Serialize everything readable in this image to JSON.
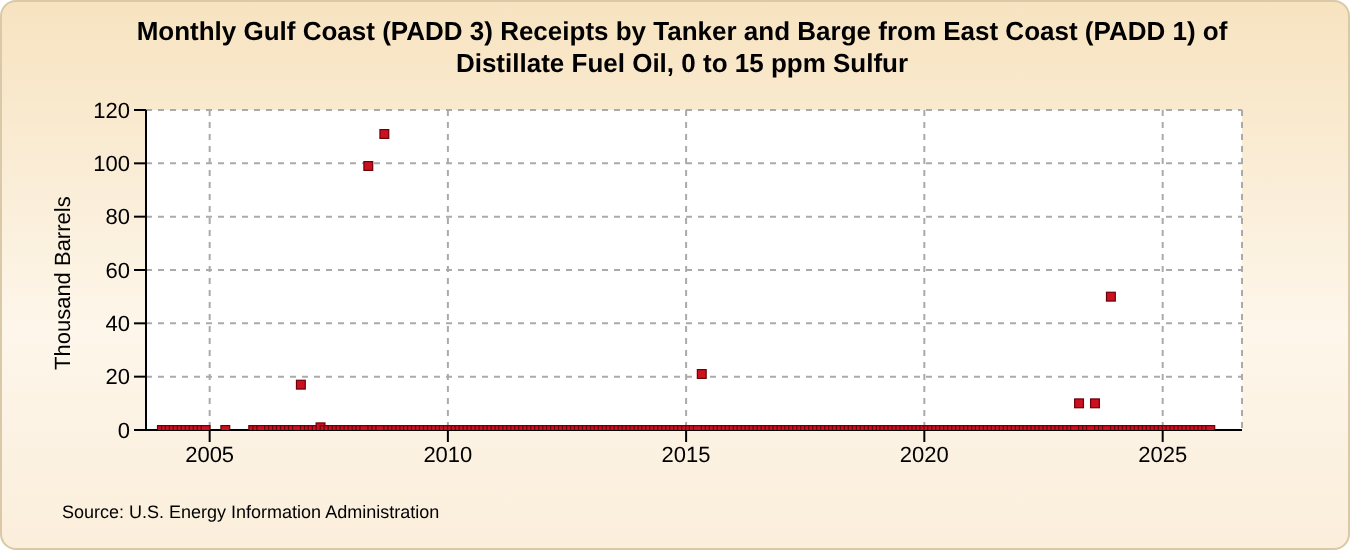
{
  "chart_data": {
    "type": "scatter",
    "title": "Monthly Gulf Coast (PADD 3) Receipts by Tanker and Barge from East Coast (PADD 1) of Distillate Fuel Oil, 0 to 15 ppm Sulfur",
    "ylabel": "Thousand Barrels",
    "annotations": [
      "Source: U.S. Energy Information Administration"
    ],
    "x": [
      "2004-01",
      "2004-02",
      "2004-03",
      "2004-04",
      "2004-05",
      "2004-06",
      "2004-07",
      "2004-08",
      "2004-09",
      "2004-10",
      "2004-11",
      "2004-12",
      "2005-05",
      "2005-12",
      "2006-01",
      "2006-02",
      "2006-04",
      "2006-05",
      "2006-06",
      "2006-07",
      "2006-08",
      "2006-09",
      "2006-10",
      "2006-11",
      "2006-12",
      "2007-01",
      "2007-02",
      "2007-03",
      "2007-04",
      "2007-05",
      "2007-06",
      "2007-07",
      "2007-08",
      "2007-09",
      "2007-10",
      "2007-11",
      "2007-12",
      "2008-01",
      "2008-02",
      "2008-03",
      "2008-04",
      "2008-05",
      "2008-06",
      "2008-07",
      "2008-08",
      "2008-09",
      "2008-10",
      "2008-11",
      "2008-12",
      "2009-01",
      "2009-02",
      "2009-03",
      "2009-04",
      "2009-05",
      "2009-06",
      "2009-07",
      "2009-08",
      "2009-09",
      "2009-10",
      "2009-11",
      "2009-12",
      "2010-01",
      "2010-02",
      "2010-03",
      "2010-04",
      "2010-05",
      "2010-06",
      "2010-07",
      "2010-08",
      "2010-09",
      "2010-10",
      "2010-11",
      "2010-12",
      "2011-01",
      "2011-02",
      "2011-03",
      "2011-04",
      "2011-05",
      "2011-06",
      "2011-07",
      "2011-08",
      "2011-09",
      "2011-10",
      "2011-11",
      "2011-12",
      "2012-01",
      "2012-02",
      "2012-03",
      "2012-04",
      "2012-05",
      "2012-06",
      "2012-07",
      "2012-08",
      "2012-09",
      "2012-10",
      "2012-11",
      "2012-12",
      "2013-01",
      "2013-02",
      "2013-03",
      "2013-04",
      "2013-05",
      "2013-06",
      "2013-07",
      "2013-08",
      "2013-09",
      "2013-10",
      "2013-11",
      "2013-12",
      "2014-01",
      "2014-02",
      "2014-03",
      "2014-04",
      "2014-05",
      "2014-06",
      "2014-07",
      "2014-08",
      "2014-09",
      "2014-10",
      "2014-11",
      "2014-12",
      "2015-01",
      "2015-02",
      "2015-03",
      "2015-04",
      "2015-05",
      "2015-06",
      "2015-07",
      "2015-08",
      "2015-09",
      "2015-10",
      "2015-11",
      "2015-12",
      "2016-01",
      "2016-02",
      "2016-03",
      "2016-04",
      "2016-05",
      "2016-06",
      "2016-07",
      "2016-08",
      "2016-09",
      "2016-10",
      "2016-11",
      "2016-12",
      "2017-01",
      "2017-02",
      "2017-03",
      "2017-04",
      "2017-05",
      "2017-06",
      "2017-07",
      "2017-08",
      "2017-09",
      "2017-10",
      "2017-11",
      "2017-12",
      "2018-01",
      "2018-02",
      "2018-03",
      "2018-04",
      "2018-05",
      "2018-06",
      "2018-07",
      "2018-08",
      "2018-09",
      "2018-10",
      "2018-11",
      "2018-12",
      "2019-01",
      "2019-02",
      "2019-03",
      "2019-04",
      "2019-05",
      "2019-06",
      "2019-07",
      "2019-08",
      "2019-09",
      "2019-10",
      "2019-11",
      "2019-12",
      "2020-01",
      "2020-02",
      "2020-03",
      "2020-04",
      "2020-05",
      "2020-06",
      "2020-07",
      "2020-08",
      "2020-09",
      "2020-10",
      "2020-11",
      "2020-12",
      "2021-01",
      "2021-02",
      "2021-03",
      "2021-04",
      "2021-05",
      "2021-06",
      "2021-07",
      "2021-08",
      "2021-09",
      "2021-10",
      "2021-11",
      "2021-12",
      "2022-01",
      "2022-02",
      "2022-03",
      "2022-04",
      "2022-05",
      "2022-06",
      "2022-07",
      "2022-08",
      "2022-09",
      "2022-10",
      "2022-11",
      "2022-12",
      "2023-01",
      "2023-02",
      "2023-03",
      "2023-04",
      "2023-05",
      "2023-06",
      "2023-07",
      "2023-08",
      "2023-09",
      "2023-10",
      "2023-11",
      "2023-12",
      "2024-01",
      "2024-02",
      "2024-03",
      "2024-04",
      "2024-05",
      "2024-06",
      "2024-07",
      "2024-08",
      "2024-09",
      "2024-10",
      "2024-11",
      "2024-12",
      "2025-01",
      "2025-02",
      "2025-03",
      "2025-04",
      "2025-05",
      "2025-06",
      "2025-07",
      "2025-08",
      "2025-09",
      "2025-10",
      "2025-11",
      "2025-12",
      "2026-01"
    ],
    "values": [
      0,
      0,
      0,
      0,
      0,
      0,
      0,
      0,
      0,
      0,
      0,
      0,
      0,
      0,
      0,
      0,
      0,
      0,
      0,
      0,
      0,
      0,
      0,
      0,
      17,
      0,
      0,
      0,
      0,
      1,
      0,
      0,
      0,
      0,
      0,
      0,
      0,
      0,
      0,
      0,
      0,
      99,
      0,
      0,
      0,
      111,
      0,
      0,
      0,
      0,
      0,
      0,
      0,
      0,
      0,
      0,
      0,
      0,
      0,
      0,
      0,
      0,
      0,
      0,
      0,
      0,
      0,
      0,
      0,
      0,
      0,
      0,
      0,
      0,
      0,
      0,
      0,
      0,
      0,
      0,
      0,
      0,
      0,
      0,
      0,
      0,
      0,
      0,
      0,
      0,
      0,
      0,
      0,
      0,
      0,
      0,
      0,
      0,
      0,
      0,
      0,
      0,
      0,
      0,
      0,
      0,
      0,
      0,
      0,
      0,
      0,
      0,
      0,
      0,
      0,
      0,
      0,
      0,
      0,
      0,
      0,
      0,
      0,
      0,
      0,
      21,
      0,
      0,
      0,
      0,
      0,
      0,
      0,
      0,
      0,
      0,
      0,
      0,
      0,
      0,
      0,
      0,
      0,
      0,
      0,
      0,
      0,
      0,
      0,
      0,
      0,
      0,
      0,
      0,
      0,
      0,
      0,
      0,
      0,
      0,
      0,
      0,
      0,
      0,
      0,
      0,
      0,
      0,
      0,
      0,
      0,
      0,
      0,
      0,
      0,
      0,
      0,
      0,
      0,
      0,
      0,
      0,
      0,
      0,
      0,
      0,
      0,
      0,
      0,
      0,
      0,
      0,
      0,
      0,
      0,
      0,
      0,
      0,
      0,
      0,
      0,
      0,
      0,
      0,
      0,
      0,
      0,
      0,
      0,
      0,
      0,
      0,
      0,
      0,
      0,
      0,
      0,
      0,
      0,
      0,
      10,
      0,
      0,
      0,
      10,
      0,
      0,
      0,
      50,
      0,
      0,
      0,
      0,
      0,
      0,
      0,
      0,
      0,
      0,
      0,
      0,
      0,
      0,
      0,
      0,
      0,
      0,
      0,
      0,
      0,
      0,
      0,
      0,
      0
    ],
    "color": "#cc1020",
    "marker": "square",
    "xlim": [
      "2003-09",
      "2026-09"
    ],
    "xticks": [
      "2005",
      "2010",
      "2015",
      "2020",
      "2025"
    ],
    "ylim": [
      0,
      120
    ],
    "yticks": [
      0,
      20,
      40,
      60,
      80,
      100,
      120
    ],
    "grid": true
  }
}
